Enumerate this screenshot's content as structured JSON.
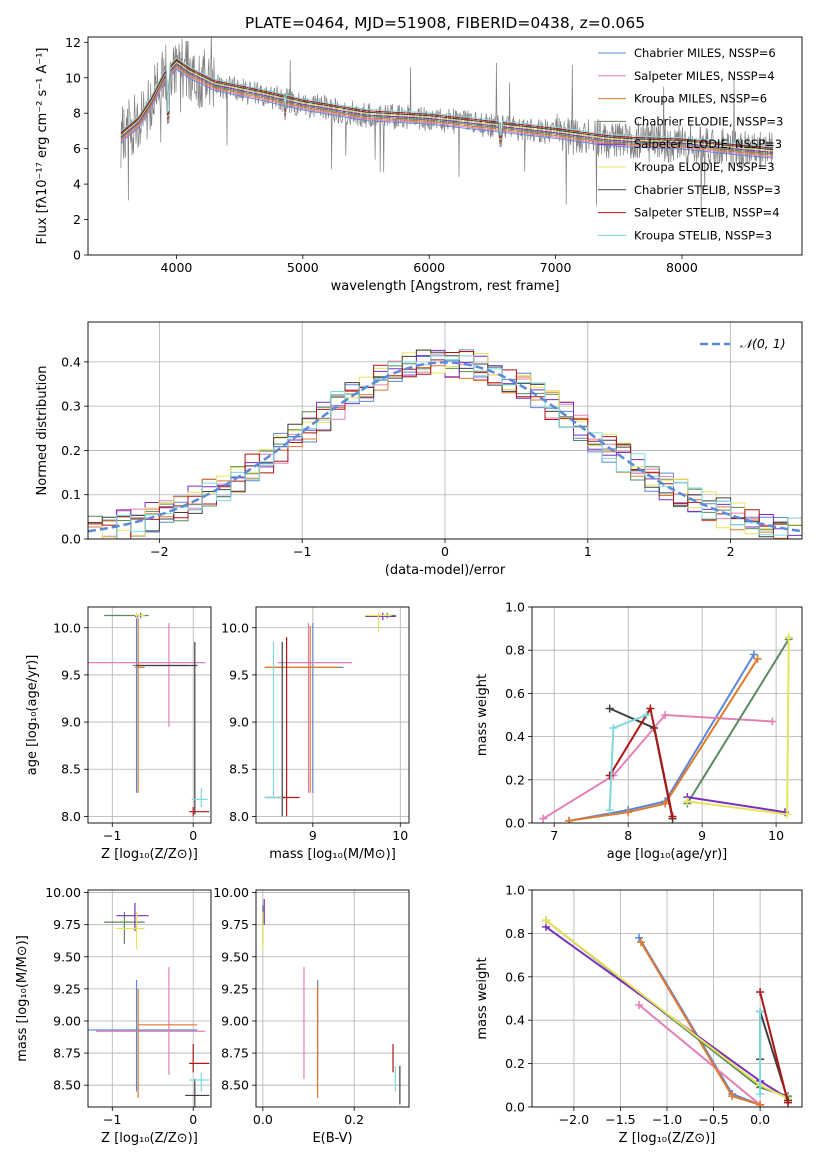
{
  "figure_title": "PLATE=0464, MJD=51908, FIBERID=0438, z=0.065",
  "colors": {
    "Chabrier MILES": "#5b87d8",
    "Salpeter MILES": "#e57fb5",
    "Kroupa MILES": "#e07a2d",
    "Chabrier ELODIE": "#5a8a5e",
    "Salpeter ELODIE": "#7b2fbe",
    "Kroupa ELODIE": "#e6e35c",
    "Chabrier STELIB": "#404040",
    "Salpeter STELIB": "#b01515",
    "Kroupa STELIB": "#7dd9de",
    "data": "#808080",
    "gaussian": "#5b8ad6"
  },
  "chart_data": [
    {
      "id": "spectrum",
      "type": "line",
      "title": "PLATE=0464, MJD=51908, FIBERID=0438, z=0.065",
      "xlabel": "wavelength [Angstrom, rest frame]",
      "ylabel": "Flux [fλ10⁻¹⁷ erg cm⁻² s⁻¹ A⁻¹]",
      "xlim": [
        3300,
        8950
      ],
      "ylim": [
        0,
        12.3
      ],
      "xticks": [
        4000,
        5000,
        6000,
        7000,
        8000
      ],
      "yticks": [
        0,
        2,
        4,
        6,
        8,
        10,
        12
      ],
      "legend_position": "top-right",
      "legend": [
        "Chabrier MILES, N_SSP=6",
        "Salpeter MILES, N_SSP=4",
        "Kroupa MILES, N_SSP=6",
        "Chabrier ELODIE, N_SSP=3",
        "Salpeter ELODIE, N_SSP=3",
        "Kroupa ELODIE, N_SSP=3",
        "Chabrier STELIB, N_SSP=3",
        "Salpeter STELIB, N_SSP=4",
        "Kroupa STELIB, N_SSP=3"
      ],
      "data_envelope": {
        "x": [
          3550,
          3700,
          3800,
          3900,
          4000,
          4100,
          4300,
          4500,
          4700,
          5000,
          5500,
          6000,
          6500,
          7000,
          7400,
          7600,
          8000,
          8400,
          8700
        ],
        "y": [
          6.6,
          7.5,
          8.6,
          10.0,
          10.8,
          10.3,
          9.6,
          9.3,
          9.0,
          8.5,
          7.9,
          7.7,
          7.3,
          6.9,
          6.5,
          6.4,
          6.3,
          6.0,
          5.8
        ]
      }
    },
    {
      "id": "residuals",
      "type": "line",
      "xlabel": "(data-model)/error",
      "ylabel": "Normed distribution",
      "xlim": [
        -2.5,
        2.5
      ],
      "ylim": [
        0,
        0.49
      ],
      "xticks": [
        -2,
        -1,
        0,
        1,
        2
      ],
      "yticks": [
        0.0,
        0.1,
        0.2,
        0.3,
        0.4
      ],
      "legend": [
        "𝒩(0, 1)"
      ],
      "legend_position": "top-right",
      "grid": true
    },
    {
      "id": "age_vs_Z",
      "type": "scatter",
      "xlabel": "Z [log₁₀(Z/Z⊙)]",
      "ylabel": "age  [log₁₀(age/yr)]",
      "xlim": [
        -1.3,
        0.22
      ],
      "ylim": [
        7.93,
        10.22
      ],
      "xticks": [
        -1,
        0
      ],
      "yticks": [
        8.0,
        8.5,
        9.0,
        9.5,
        10.0
      ],
      "grid": true
    },
    {
      "id": "age_vs_mass",
      "type": "scatter",
      "xlabel": "mass [log₁₀(M/M⊙)]",
      "xlim": [
        8.35,
        10.1
      ],
      "ylim": [
        7.93,
        10.22
      ],
      "xticks": [
        9,
        10
      ],
      "yticks": [
        8.0,
        8.5,
        9.0,
        9.5,
        10.0
      ],
      "grid": true
    },
    {
      "id": "weight_vs_age",
      "type": "line",
      "xlabel": "age  [log₁₀(age/yr)]",
      "ylabel": "mass weight",
      "xlim": [
        6.7,
        10.35
      ],
      "ylim": [
        0,
        1.0
      ],
      "xticks": [
        7,
        8,
        9,
        10
      ],
      "yticks": [
        0.0,
        0.2,
        0.4,
        0.6,
        0.8,
        1.0
      ],
      "grid": true,
      "series": [
        {
          "key": "Chabrier MILES",
          "x": [
            7.2,
            8.0,
            8.5,
            9.7
          ],
          "y": [
            0.01,
            0.06,
            0.1,
            0.78
          ]
        },
        {
          "key": "Salpeter MILES",
          "x": [
            6.85,
            7.8,
            8.5,
            9.95
          ],
          "y": [
            0.02,
            0.22,
            0.5,
            0.47
          ]
        },
        {
          "key": "Kroupa MILES",
          "x": [
            7.2,
            8.0,
            8.5,
            9.75
          ],
          "y": [
            0.01,
            0.05,
            0.09,
            0.76
          ]
        },
        {
          "key": "Chabrier ELODIE",
          "x": [
            8.8,
            10.17
          ],
          "y": [
            0.09,
            0.85
          ]
        },
        {
          "key": "Salpeter ELODIE",
          "x": [
            8.8,
            10.12
          ],
          "y": [
            0.12,
            0.05
          ]
        },
        {
          "key": "Kroupa ELODIE",
          "x": [
            8.8,
            10.15,
            10.17
          ],
          "y": [
            0.1,
            0.04,
            0.86
          ]
        },
        {
          "key": "Chabrier STELIB",
          "x": [
            7.75,
            8.35,
            8.6
          ],
          "y": [
            0.53,
            0.44,
            0.02
          ]
        },
        {
          "key": "Salpeter STELIB",
          "x": [
            7.75,
            8.3,
            8.6
          ],
          "y": [
            0.22,
            0.53,
            0.03
          ]
        },
        {
          "key": "Kroupa STELIB",
          "x": [
            7.75,
            7.8,
            8.25
          ],
          "y": [
            0.06,
            0.44,
            0.5
          ]
        }
      ]
    },
    {
      "id": "mass_vs_Z",
      "type": "scatter",
      "xlabel": "Z [log₁₀(Z/Z⊙)]",
      "ylabel": "mass [log₁₀(M/M⊙)]",
      "xlim": [
        -1.3,
        0.22
      ],
      "ylim": [
        8.33,
        10.02
      ],
      "xticks": [
        -1,
        0
      ],
      "yticks": [
        8.5,
        8.75,
        9.0,
        9.25,
        9.5,
        9.75,
        10.0
      ],
      "grid": true
    },
    {
      "id": "mass_vs_EBV",
      "type": "scatter",
      "xlabel": "E(B-V)",
      "xlim": [
        -0.015,
        0.32
      ],
      "ylim": [
        8.33,
        10.02
      ],
      "xticks": [
        0.0,
        0.2
      ],
      "yticks": [
        8.5,
        8.75,
        9.0,
        9.25,
        9.5,
        9.75,
        10.0
      ],
      "grid": true
    },
    {
      "id": "weight_vs_Z",
      "type": "line",
      "xlabel": "Z [log₁₀(Z/Z⊙)]",
      "ylabel": "mass weight",
      "xlim": [
        -2.45,
        0.45
      ],
      "ylim": [
        0,
        1.0
      ],
      "xticks": [
        -2.0,
        -1.5,
        -1.0,
        -0.5,
        0.0
      ],
      "yticks": [
        0.0,
        0.2,
        0.4,
        0.6,
        0.8,
        1.0
      ],
      "grid": true,
      "series": [
        {
          "key": "Chabrier MILES",
          "x": [
            -1.3,
            -0.3,
            0.0
          ],
          "y": [
            0.78,
            0.06,
            0.01
          ]
        },
        {
          "key": "Salpeter MILES",
          "x": [
            -1.3,
            0.0
          ],
          "y": [
            0.47,
            0.01
          ]
        },
        {
          "key": "Kroupa MILES",
          "x": [
            -1.28,
            -0.3,
            0.0
          ],
          "y": [
            0.76,
            0.05,
            0.01
          ]
        },
        {
          "key": "Chabrier ELODIE",
          "x": [
            -2.3,
            0.0,
            0.3
          ],
          "y": [
            0.86,
            0.09,
            0.05
          ]
        },
        {
          "key": "Salpeter ELODIE",
          "x": [
            -2.3,
            0.0,
            0.3
          ],
          "y": [
            0.83,
            0.12,
            0.04
          ]
        },
        {
          "key": "Kroupa ELODIE",
          "x": [
            -2.3,
            0.0,
            0.3
          ],
          "y": [
            0.86,
            0.1,
            0.04
          ]
        },
        {
          "key": "Chabrier STELIB",
          "x": [
            0.0,
            0.0,
            0.3
          ],
          "y": [
            0.22,
            0.44,
            0.03
          ]
        },
        {
          "key": "Salpeter STELIB",
          "x": [
            0.0,
            0.3
          ],
          "y": [
            0.53,
            0.02
          ]
        },
        {
          "key": "Kroupa STELIB",
          "x": [
            0.0,
            0.0
          ],
          "y": [
            0.44,
            0.06
          ]
        }
      ]
    }
  ]
}
